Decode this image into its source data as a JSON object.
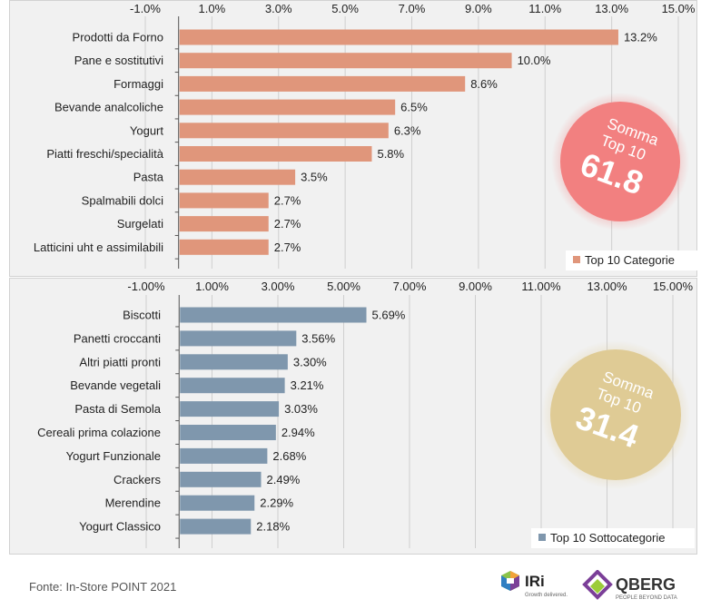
{
  "chart_data": [
    {
      "type": "bar",
      "orientation": "horizontal",
      "categories": [
        "Prodotti da Forno",
        "Pane e sostitutivi",
        "Formaggi",
        "Bevande analcoliche",
        "Yogurt",
        "Piatti freschi/specialità",
        "Pasta",
        "Spalmabili dolci",
        "Surgelati",
        "Latticini uht e assimilabili"
      ],
      "values": [
        13.2,
        10.0,
        8.6,
        6.5,
        6.3,
        5.8,
        3.5,
        2.7,
        2.7,
        2.7
      ],
      "value_labels": [
        "13.2%",
        "10.0%",
        "8.6%",
        "6.5%",
        "6.3%",
        "5.8%",
        "3.5%",
        "2.7%",
        "2.7%",
        "2.7%"
      ],
      "series": [
        {
          "name": "Top 10 Categorie",
          "values": [
            13.2,
            10.0,
            8.6,
            6.5,
            6.3,
            5.8,
            3.5,
            2.7,
            2.7,
            2.7
          ]
        }
      ],
      "xlim": [
        -1.0,
        15.0
      ],
      "tick_values": [
        -1,
        1,
        3,
        5,
        7,
        9,
        11,
        13,
        15
      ],
      "tick_labels": [
        "-1.0%",
        "1.0%",
        "3.0%",
        "5.0%",
        "7.0%",
        "9.0%",
        "11.0%",
        "13.0%",
        "15.0%"
      ],
      "axis_position": "top",
      "grid": true,
      "legend": "bottom-right",
      "bar_color": "#e0967b",
      "badge": {
        "line1": "Somma",
        "line2": "Top 10",
        "value": "61.8",
        "color": "#f28080"
      }
    },
    {
      "type": "bar",
      "orientation": "horizontal",
      "categories": [
        "Biscotti",
        "Panetti croccanti",
        "Altri piatti pronti",
        "Bevande vegetali",
        "Pasta di Semola",
        "Cereali prima colazione",
        "Yogurt Funzionale",
        "Crackers",
        "Merendine",
        "Yogurt Classico"
      ],
      "values": [
        5.69,
        3.56,
        3.3,
        3.21,
        3.03,
        2.94,
        2.68,
        2.49,
        2.29,
        2.18
      ],
      "value_labels": [
        "5.69%",
        "3.56%",
        "3.30%",
        "3.21%",
        "3.03%",
        "2.94%",
        "2.68%",
        "2.49%",
        "2.29%",
        "2.18%"
      ],
      "series": [
        {
          "name": "Top 10 Sottocategorie",
          "values": [
            5.69,
            3.56,
            3.3,
            3.21,
            3.03,
            2.94,
            2.68,
            2.49,
            2.29,
            2.18
          ]
        }
      ],
      "xlim": [
        -1.0,
        15.0
      ],
      "tick_values": [
        -1,
        1,
        3,
        5,
        7,
        9,
        11,
        13,
        15
      ],
      "tick_labels": [
        "-1.00%",
        "1.00%",
        "3.00%",
        "5.00%",
        "7.00%",
        "9.00%",
        "11.00%",
        "13.00%",
        "15.00%"
      ],
      "axis_position": "top",
      "grid": true,
      "legend": "bottom-right",
      "bar_color": "#7f97ad",
      "badge": {
        "line1": "Somma",
        "line2": "Top 10",
        "value": "31.4",
        "color": "#dfcb95"
      }
    }
  ],
  "footer": {
    "source": "Fonte: In-Store POINT 2021"
  },
  "logos": {
    "iri": {
      "name": "IRi",
      "tagline": "Growth delivered."
    },
    "qberg": {
      "name": "QBERG",
      "tagline": "PEOPLE BEYOND DATA"
    }
  }
}
